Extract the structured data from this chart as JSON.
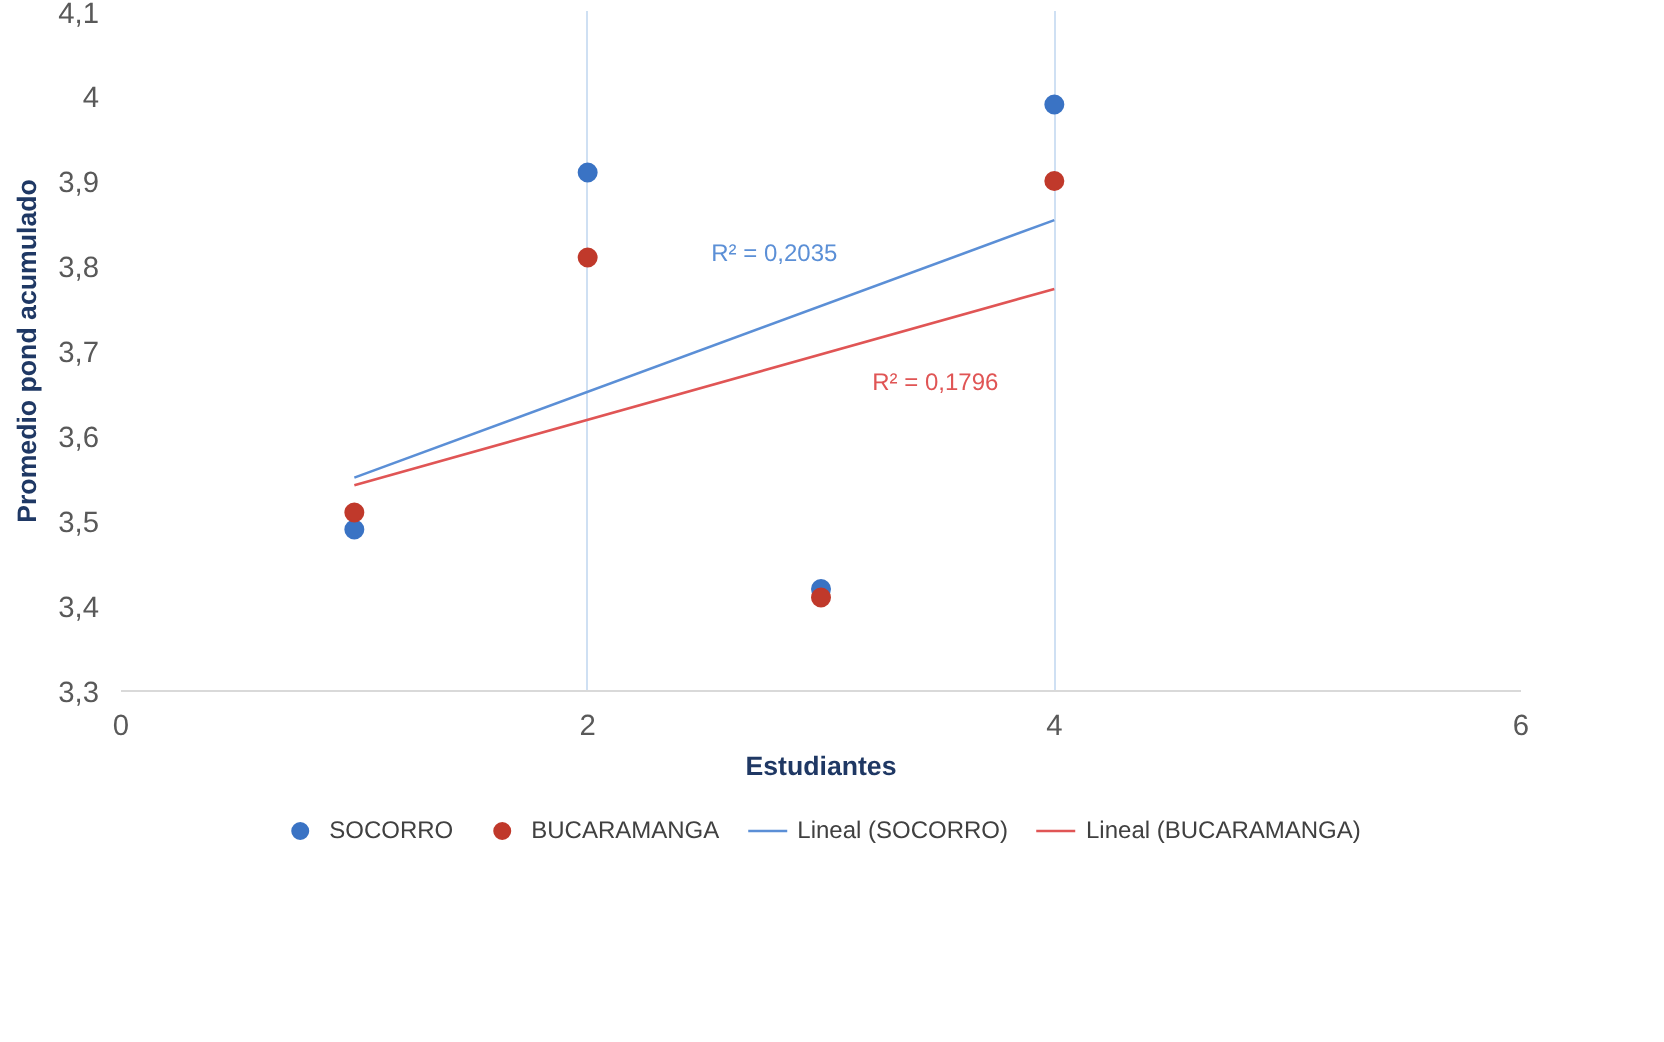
{
  "chart_data": {
    "type": "scatter",
    "xlabel": "Estudiantes",
    "ylabel": "Promedio pond acumulado",
    "xlim": [
      0,
      6
    ],
    "xticks": [
      0,
      2,
      4,
      6
    ],
    "ylim": [
      3.3,
      4.1
    ],
    "yticks": [
      {
        "value": 3.3,
        "label": "3,3"
      },
      {
        "value": 3.4,
        "label": "3,4"
      },
      {
        "value": 3.5,
        "label": "3,5"
      },
      {
        "value": 3.6,
        "label": "3,6"
      },
      {
        "value": 3.7,
        "label": "3,7"
      },
      {
        "value": 3.8,
        "label": "3,8"
      },
      {
        "value": 3.9,
        "label": "3,9"
      },
      4,
      {
        "value": 4.1,
        "label": "4,1"
      }
    ],
    "grid": "x",
    "legend": "bottom",
    "series": [
      {
        "name": "SOCORRO",
        "color": "#3a73c4",
        "x": [
          1,
          2,
          3,
          4
        ],
        "values": [
          3.49,
          3.91,
          3.42,
          3.99
        ]
      },
      {
        "name": "BUCARAMANGA",
        "color": "#c0392b",
        "x": [
          1,
          2,
          3,
          4
        ],
        "values": [
          3.51,
          3.81,
          3.41,
          3.9
        ]
      },
      {
        "name": "Lineal (SOCORRO)",
        "type": "line",
        "color": "#5b8fd6",
        "x": [
          1,
          4
        ],
        "values": [
          3.551,
          3.854
        ]
      },
      {
        "name": "Lineal (BUCARAMANGA)",
        "type": "line",
        "color": "#e05555",
        "x": [
          1,
          4
        ],
        "values": [
          3.542,
          3.773
        ]
      }
    ],
    "annotations": [
      "R² = 0,2035",
      "R² = 0,1796"
    ]
  }
}
